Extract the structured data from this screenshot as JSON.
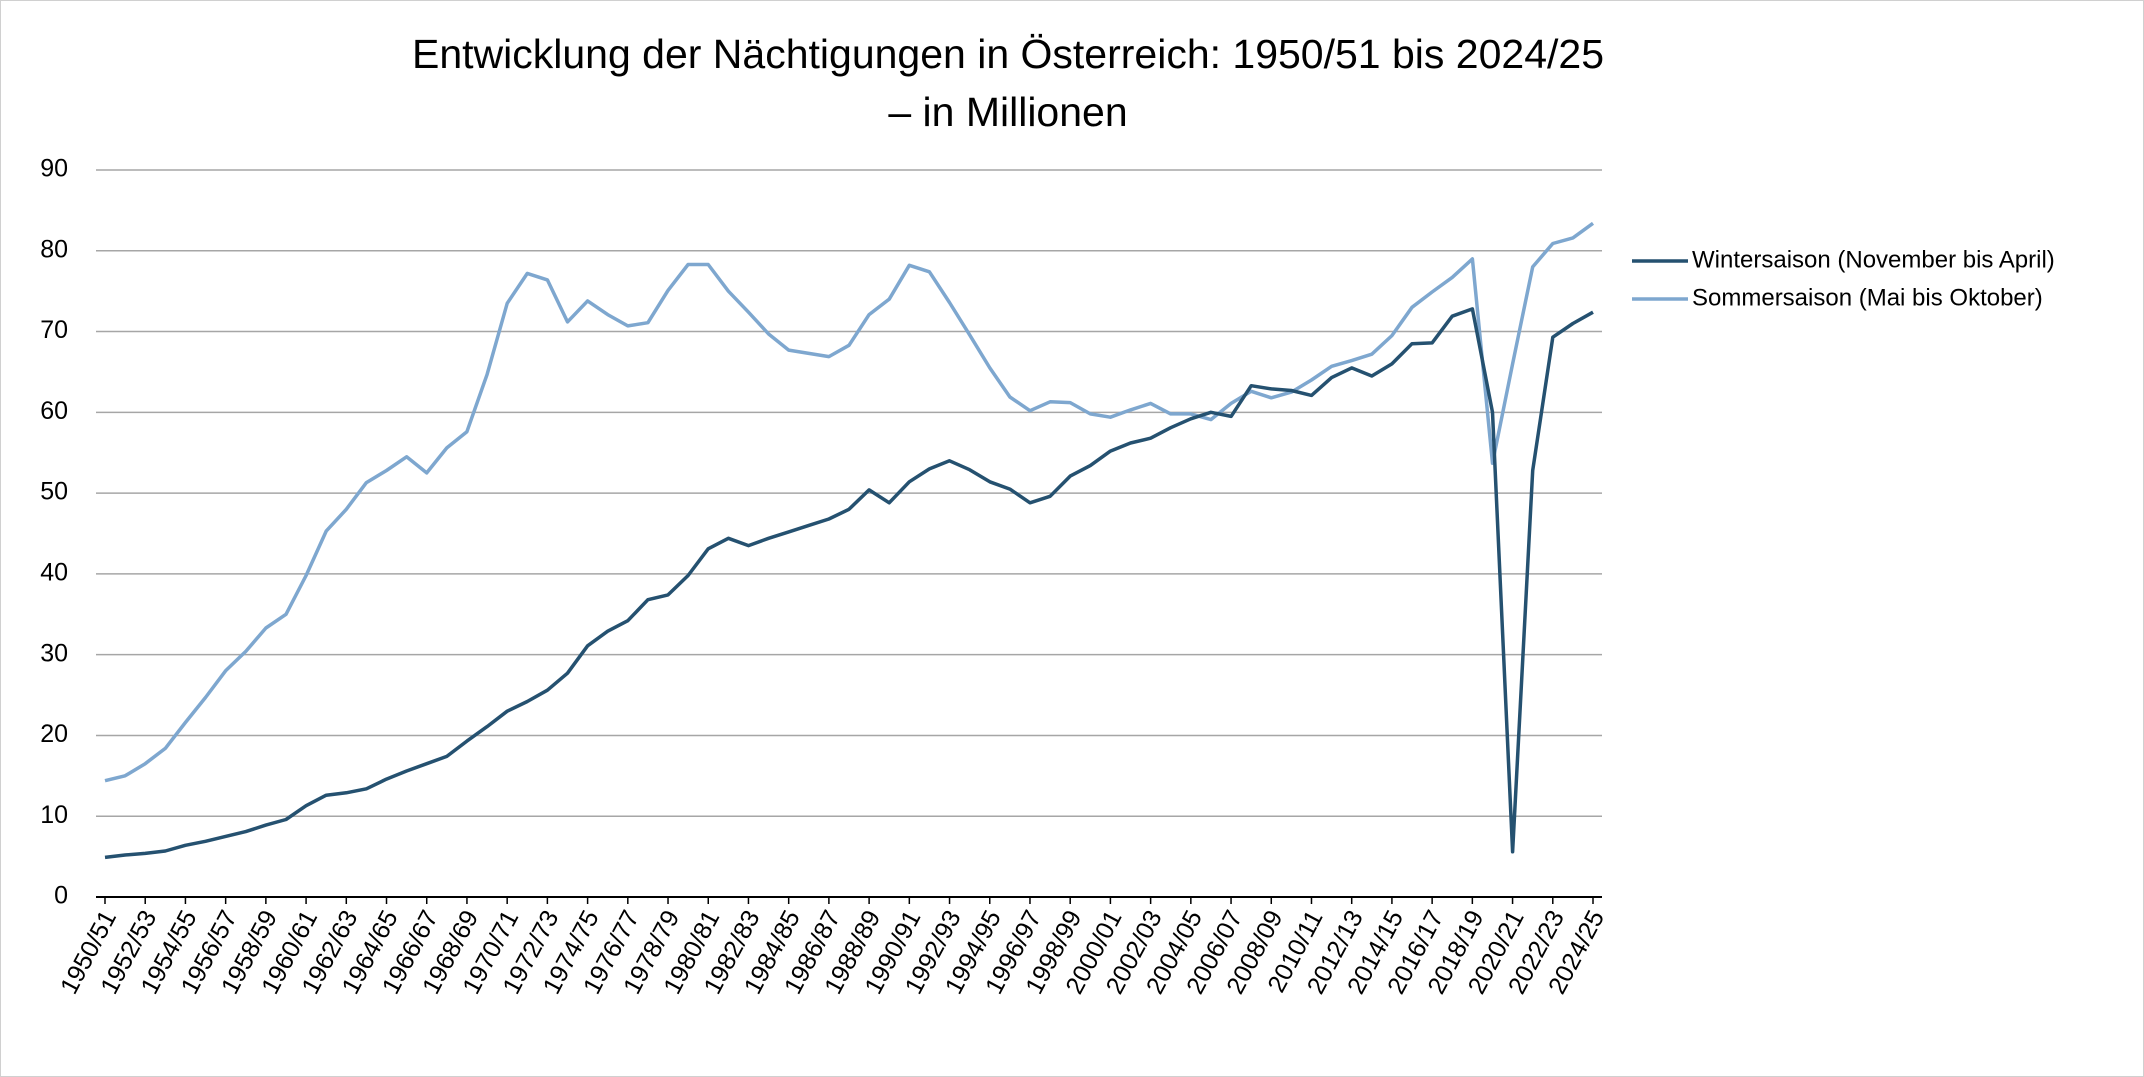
{
  "chart_data": {
    "type": "line",
    "title": [
      "Entwicklung der Nächtigungen in Österreich: 1950/51 bis 2024/25",
      "– in Millionen"
    ],
    "categories": [
      "1950/51",
      null,
      "1952/53",
      null,
      "1954/55",
      null,
      "1956/57",
      null,
      "1958/59",
      null,
      "1960/61",
      null,
      "1962/63",
      null,
      "1964/65",
      null,
      "1966/67",
      null,
      "1968/69",
      null,
      "1970/71",
      null,
      "1972/73",
      null,
      "1974/75",
      null,
      "1976/77",
      null,
      "1978/79",
      null,
      "1980/81",
      null,
      "1982/83",
      null,
      "1984/85",
      null,
      "1986/87",
      null,
      "1988/89",
      null,
      "1990/91",
      null,
      "1992/93",
      null,
      "1994/95",
      null,
      "1996/97",
      null,
      "1998/99",
      null,
      "2000/01",
      null,
      "2002/03",
      null,
      "2004/05",
      null,
      "2006/07",
      null,
      "2008/09",
      null,
      "2010/11",
      null,
      "2012/13",
      null,
      "2014/15",
      null,
      "2016/17",
      null,
      "2018/19",
      null,
      "2020/21",
      null,
      "2022/23",
      null,
      "2024/25"
    ],
    "series": [
      {
        "name": "Wintersaison (November bis April)",
        "color": "#255170",
        "values": [
          4.9,
          5.2,
          5.4,
          5.7,
          6.4,
          6.9,
          7.5,
          8.1,
          8.9,
          9.6,
          11.3,
          12.6,
          12.9,
          13.4,
          14.6,
          15.6,
          16.5,
          17.4,
          19.3,
          21.1,
          23.0,
          24.2,
          25.6,
          27.7,
          31.1,
          32.9,
          34.2,
          36.8,
          37.4,
          39.8,
          43.1,
          44.4,
          43.5,
          44.4,
          45.2,
          46.0,
          46.8,
          48.0,
          50.4,
          48.8,
          51.4,
          53.0,
          54.0,
          52.9,
          51.4,
          50.5,
          48.8,
          49.6,
          52.1,
          53.4,
          55.2,
          56.2,
          56.8,
          58.1,
          59.2,
          60.0,
          59.5,
          63.3,
          62.9,
          62.7,
          62.1,
          64.3,
          65.5,
          64.5,
          66.0,
          68.5,
          68.6,
          71.9,
          72.8,
          60.0,
          5.6,
          52.8,
          69.3,
          71.0,
          72.4
        ]
      },
      {
        "name": "Sommersaison (Mai bis Oktober)",
        "color": "#7ea7cf",
        "values": [
          14.4,
          15.0,
          16.5,
          18.4,
          21.6,
          24.7,
          28.0,
          30.4,
          33.3,
          35.0,
          39.8,
          45.3,
          48.0,
          51.3,
          52.8,
          54.5,
          52.5,
          55.6,
          57.6,
          64.7,
          73.5,
          77.2,
          76.4,
          71.2,
          73.8,
          72.1,
          70.7,
          71.1,
          75.1,
          78.3,
          78.3,
          75.0,
          72.4,
          69.7,
          67.7,
          67.3,
          66.9,
          68.3,
          72.1,
          74.0,
          78.2,
          77.4,
          73.6,
          69.6,
          65.5,
          61.9,
          60.2,
          61.3,
          61.2,
          59.8,
          59.4,
          60.3,
          61.1,
          59.8,
          59.8,
          59.1,
          61.1,
          62.6,
          61.8,
          62.5,
          64.0,
          65.7,
          66.4,
          67.2,
          69.5,
          73.0,
          74.9,
          76.7,
          79.0,
          53.7,
          66.0,
          78.0,
          80.9,
          81.6,
          83.4
        ]
      }
    ],
    "ylim": [
      0,
      90
    ],
    "yticks": [
      0,
      10,
      20,
      30,
      40,
      50,
      60,
      70,
      80,
      90
    ],
    "grid": true,
    "legend": "right"
  }
}
